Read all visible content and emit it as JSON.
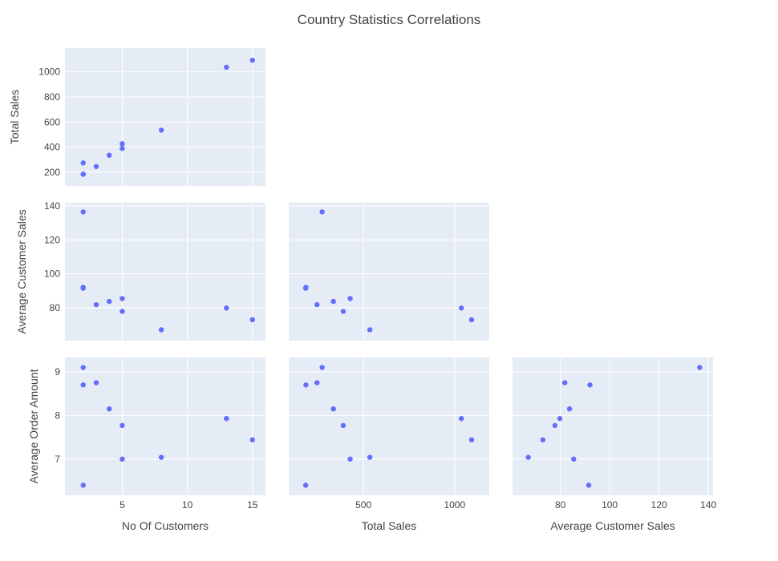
{
  "chart_data": {
    "type": "scatter",
    "title": "Country Statistics Correlations",
    "marker_color": "#636efa",
    "panel_bg": "#e5ecf6",
    "grid": true,
    "variables": [
      "No Of Customers",
      "Total Sales",
      "Average Customer Sales",
      "Average Order Amount"
    ],
    "points": [
      {
        "customers": 2,
        "total_sales": 273,
        "avg_customer_sales": 136.5,
        "avg_order_amount": 9.1
      },
      {
        "customers": 2,
        "total_sales": 184,
        "avg_customer_sales": 92.0,
        "avg_order_amount": 8.7
      },
      {
        "customers": 2,
        "total_sales": 183,
        "avg_customer_sales": 91.5,
        "avg_order_amount": 6.4
      },
      {
        "customers": 3,
        "total_sales": 245,
        "avg_customer_sales": 81.8,
        "avg_order_amount": 8.75
      },
      {
        "customers": 4,
        "total_sales": 335,
        "avg_customer_sales": 83.7,
        "avg_order_amount": 8.15
      },
      {
        "customers": 5,
        "total_sales": 427,
        "avg_customer_sales": 85.4,
        "avg_order_amount": 7.0
      },
      {
        "customers": 5,
        "total_sales": 389,
        "avg_customer_sales": 77.8,
        "avg_order_amount": 7.77
      },
      {
        "customers": 8,
        "total_sales": 535,
        "avg_customer_sales": 67.0,
        "avg_order_amount": 7.04
      },
      {
        "customers": 13,
        "total_sales": 1037,
        "avg_customer_sales": 79.8,
        "avg_order_amount": 7.93
      },
      {
        "customers": 15,
        "total_sales": 1093,
        "avg_customer_sales": 72.9,
        "avg_order_amount": 7.44
      }
    ],
    "axes": {
      "customers": {
        "range": [
          0.6,
          16.0
        ],
        "ticks": [
          5,
          10,
          15
        ],
        "label": "No Of Customers"
      },
      "total_sales": {
        "range": [
          90,
          1190
        ],
        "ticks": [
          200,
          400,
          600,
          800,
          1000
        ],
        "xticks": [
          500,
          1000
        ],
        "label": "Total Sales"
      },
      "avg_customer_sales": {
        "range": [
          60.6,
          141.9
        ],
        "ticks": [
          80,
          100,
          120,
          140
        ],
        "label": "Average Customer Sales"
      },
      "avg_order_amount": {
        "range": [
          6.17,
          9.33
        ],
        "ticks": [
          7,
          8,
          9
        ],
        "label": "Average Order Amount"
      }
    },
    "panels": [
      {
        "id": "r1c1",
        "x": "customers",
        "y": "total_sales"
      },
      {
        "id": "r2c1",
        "x": "customers",
        "y": "avg_customer_sales"
      },
      {
        "id": "r2c2",
        "x": "total_sales",
        "y": "avg_customer_sales"
      },
      {
        "id": "r3c1",
        "x": "customers",
        "y": "avg_order_amount"
      },
      {
        "id": "r3c2",
        "x": "total_sales",
        "y": "avg_order_amount"
      },
      {
        "id": "r3c3",
        "x": "avg_customer_sales",
        "y": "avg_order_amount"
      }
    ]
  }
}
